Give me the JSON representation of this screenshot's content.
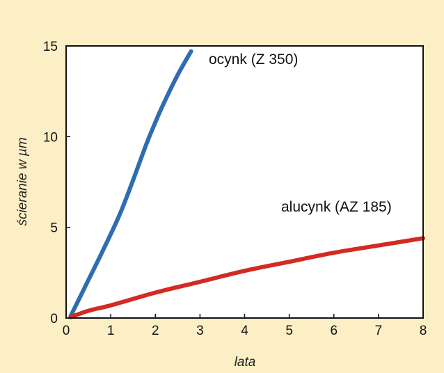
{
  "chart_data": {
    "type": "line",
    "xlabel": "lata",
    "ylabel": "ścieranie w µm",
    "xlim": [
      0,
      8
    ],
    "ylim": [
      0,
      15
    ],
    "xticks": [
      0,
      1,
      2,
      3,
      4,
      5,
      6,
      7,
      8
    ],
    "yticks": [
      0,
      5,
      10,
      15
    ],
    "grid": false,
    "colors": {
      "background": "#fcefc6",
      "plot_bg": "#ffffff"
    },
    "series": [
      {
        "name": "ocynk (Z 350)",
        "color": "#2f6db0",
        "x": [
          0.1,
          0.4,
          0.8,
          1.2,
          1.5,
          1.8,
          2.0,
          2.2,
          2.5,
          2.8
        ],
        "y": [
          0.1,
          1.6,
          3.6,
          5.7,
          7.6,
          9.6,
          10.8,
          11.9,
          13.4,
          14.7
        ]
      },
      {
        "name": "alucynk (AZ 185)",
        "color": "#d42a22",
        "x": [
          0.1,
          0.5,
          1,
          2,
          3,
          4,
          5,
          6,
          7,
          8
        ],
        "y": [
          0.05,
          0.4,
          0.7,
          1.4,
          2.0,
          2.6,
          3.1,
          3.6,
          4.0,
          4.4
        ]
      }
    ]
  }
}
